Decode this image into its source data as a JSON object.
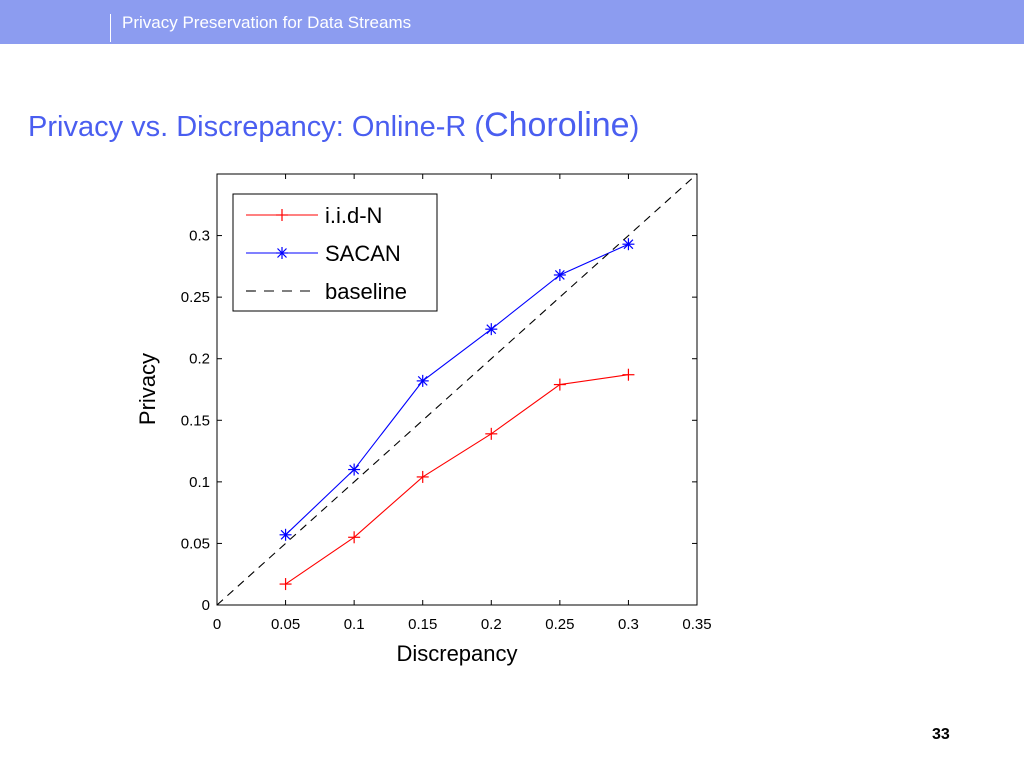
{
  "header": {
    "title": "Privacy Preservation for Data Streams"
  },
  "slide": {
    "title_main": "Privacy vs. Discrepancy: Online-R (",
    "title_emph": "Choroline",
    "title_end": ")",
    "page_number": "33"
  },
  "colors": {
    "header": "#8c9cf0",
    "title": "#4a5ef0",
    "iid": "#ff0000",
    "sacan": "#0000ff",
    "baseline": "#000000"
  },
  "chart_data": {
    "type": "line",
    "title": "",
    "xlabel": "Discrepancy",
    "ylabel": "Privacy",
    "xlim": [
      0,
      0.35
    ],
    "ylim": [
      0,
      0.35
    ],
    "xticks": [
      "0",
      "0.05",
      "0.1",
      "0.15",
      "0.2",
      "0.25",
      "0.3",
      "0.35"
    ],
    "yticks": [
      "0",
      "0.05",
      "0.1",
      "0.15",
      "0.2",
      "0.25",
      "0.3"
    ],
    "legend_position": "top-left",
    "series": [
      {
        "name": "i.i.d-N",
        "marker": "+",
        "style": "solid",
        "color": "#ff0000",
        "x": [
          0.05,
          0.1,
          0.15,
          0.2,
          0.25,
          0.3
        ],
        "y": [
          0.017,
          0.055,
          0.104,
          0.139,
          0.179,
          0.187
        ]
      },
      {
        "name": "SACAN",
        "marker": "*",
        "style": "solid",
        "color": "#0000ff",
        "x": [
          0.05,
          0.1,
          0.15,
          0.2,
          0.25,
          0.3
        ],
        "y": [
          0.057,
          0.11,
          0.182,
          0.224,
          0.268,
          0.293
        ]
      },
      {
        "name": "baseline",
        "marker": "none",
        "style": "dashed",
        "color": "#000000",
        "x": [
          0,
          0.35
        ],
        "y": [
          0,
          0.35
        ]
      }
    ]
  }
}
